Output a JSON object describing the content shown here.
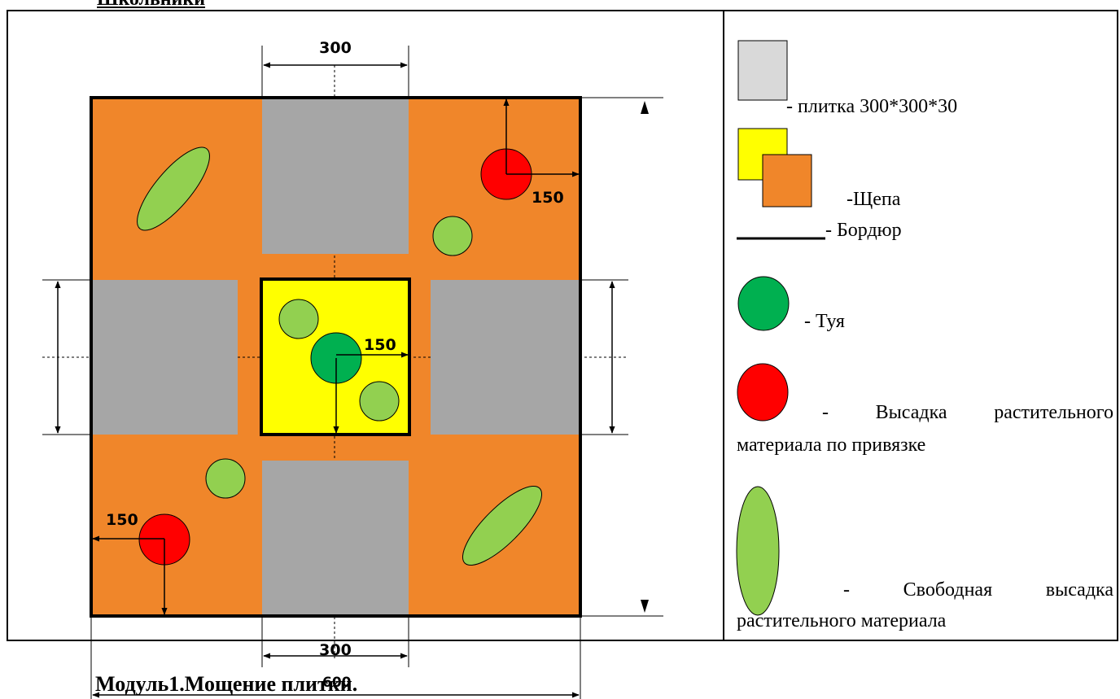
{
  "header": {
    "title": "Школьники"
  },
  "plan": {
    "dimensions": {
      "top_tile_width": "300",
      "bottom_tile_width": "300",
      "center_offset": "150",
      "top_right_offset": "150",
      "bottom_left_offset": "150",
      "overall_width": "600"
    }
  },
  "legend": {
    "tile": "- плитка 300*300*30",
    "chips": "-Щепа",
    "border": "- Бордюр",
    "thuja": "- Туя",
    "planting_fixed_line1": "- Высадка растительного",
    "planting_fixed_line2": "материала по привязке",
    "planting_free_line1": "- Свободная высадка",
    "planting_free_line2": "растительного материала"
  },
  "caption": {
    "text": "Модуль1.Мощение плитки."
  },
  "colors": {
    "chips_orange": "#f0862a",
    "tile_gray": "#a6a6a6",
    "legend_tile_gray": "#d9d9d9",
    "center_yellow": "#ffff00",
    "thuja_green": "#00b050",
    "free_plant_green": "#92d050",
    "fixed_plant_red": "#ff0000"
  }
}
